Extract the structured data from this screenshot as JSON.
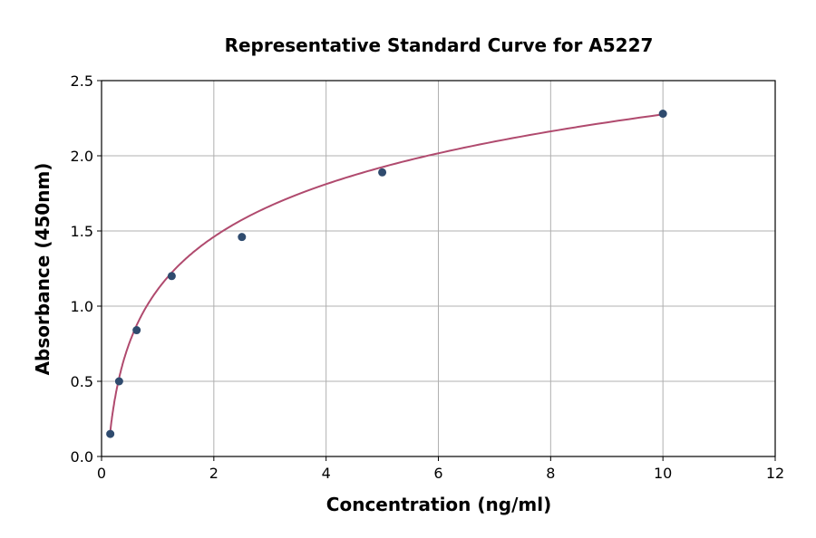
{
  "chart_data": {
    "type": "scatter",
    "title": "Representative Standard Curve for A5227",
    "xlabel": "Concentration (ng/ml)",
    "ylabel": "Absorbance (450nm)",
    "xlim": [
      0,
      12
    ],
    "ylim": [
      0,
      2.5
    ],
    "xticks": [
      "0",
      "2",
      "4",
      "6",
      "8",
      "10",
      "12"
    ],
    "yticks": [
      "0.0",
      "0.5",
      "1.0",
      "1.5",
      "2.0",
      "2.5"
    ],
    "grid": true,
    "points": [
      {
        "x": 0.156,
        "y": 0.15
      },
      {
        "x": 0.313,
        "y": 0.5
      },
      {
        "x": 0.625,
        "y": 0.84
      },
      {
        "x": 1.25,
        "y": 1.2
      },
      {
        "x": 2.5,
        "y": 1.46
      },
      {
        "x": 5,
        "y": 1.89
      },
      {
        "x": 10,
        "y": 2.28
      }
    ],
    "fit_curve": true,
    "colors": {
      "points": "#2f4b6e",
      "curve": "#b04a6e"
    }
  }
}
